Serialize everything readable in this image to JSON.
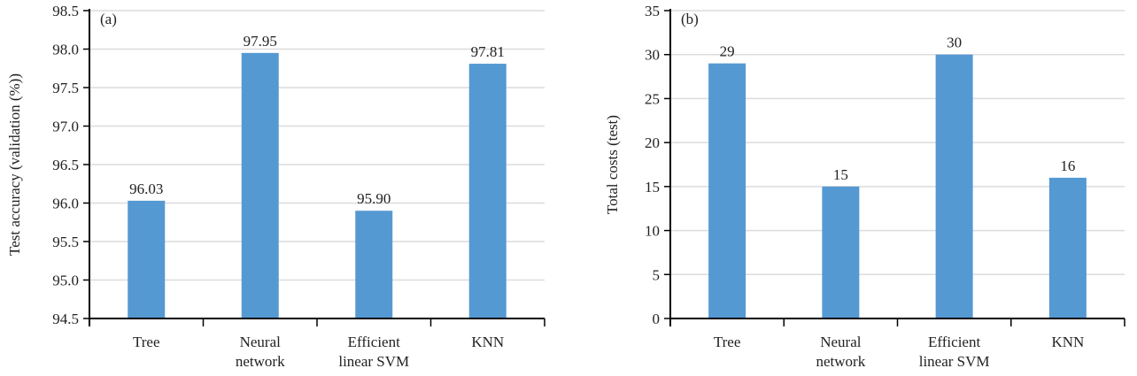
{
  "chart_data": [
    {
      "type": "bar",
      "panel_label": "(a)",
      "categories": [
        [
          "Tree"
        ],
        [
          "Neural",
          "network"
        ],
        [
          "Efficient",
          "linear SVM"
        ],
        [
          "KNN"
        ]
      ],
      "values": [
        96.03,
        97.95,
        95.9,
        97.81
      ],
      "data_labels": [
        "96.03",
        "97.95",
        "95.90",
        "97.81"
      ],
      "xlabel": "",
      "ylabel": "Test accuracy (validation (%))",
      "ylim": [
        94.5,
        98.5
      ],
      "yticks": [
        "94.5",
        "95.0",
        "95.5",
        "96.0",
        "96.5",
        "97.0",
        "97.5",
        "98.0",
        "98.5"
      ],
      "grid": true,
      "bar_color": "#5599d3"
    },
    {
      "type": "bar",
      "panel_label": "(b)",
      "categories": [
        [
          "Tree"
        ],
        [
          "Neural",
          "network"
        ],
        [
          "Efficient",
          "linear SVM"
        ],
        [
          "KNN"
        ]
      ],
      "values": [
        29,
        15,
        30,
        16
      ],
      "data_labels": [
        "29",
        "15",
        "30",
        "16"
      ],
      "xlabel": "",
      "ylabel": "Total costs (test)",
      "ylim": [
        0,
        35
      ],
      "yticks": [
        "0",
        "5",
        "10",
        "15",
        "20",
        "25",
        "30",
        "35"
      ],
      "grid": true,
      "bar_color": "#5599d3"
    }
  ]
}
